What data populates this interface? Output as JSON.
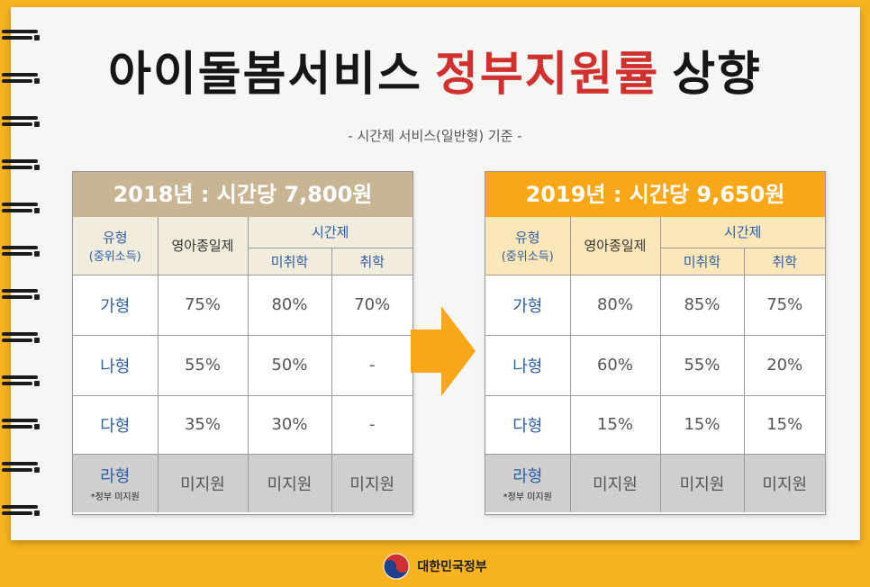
{
  "title": {
    "part1": "아이돌봄서비스",
    "highlight": "정부지원률",
    "part2": "상향"
  },
  "subtitle": "- 시간제 서비스(일반형) 기준 -",
  "colors": {
    "accent_red": "#d0302e",
    "brand_orange": "#f9a617",
    "tan": "#c8b593"
  },
  "headers": {
    "type": "유형",
    "type_sub": "(중위소득)",
    "comprehensive": "영아종일제",
    "hourly": "시간제",
    "preschool": "미취학",
    "school": "취학"
  },
  "tables": [
    {
      "heading": "2018년 : 시간당 7,800원",
      "rows": [
        {
          "label": "가형",
          "comprehensive": "75%",
          "preschool": "80%",
          "school": "70%"
        },
        {
          "label": "나형",
          "comprehensive": "55%",
          "preschool": "50%",
          "school": "-"
        },
        {
          "label": "다형",
          "comprehensive": "35%",
          "preschool": "30%",
          "school": "-"
        }
      ],
      "last_row": {
        "label": "라형",
        "note": "*정부 미지원",
        "comprehensive": "미지원",
        "preschool": "미지원",
        "school": "미지원"
      }
    },
    {
      "heading": "2019년 : 시간당 9,650원",
      "rows": [
        {
          "label": "가형",
          "comprehensive": "80%",
          "preschool": "85%",
          "school": "75%"
        },
        {
          "label": "나형",
          "comprehensive": "60%",
          "preschool": "55%",
          "school": "20%"
        },
        {
          "label": "다형",
          "comprehensive": "15%",
          "preschool": "15%",
          "school": "15%"
        }
      ],
      "last_row": {
        "label": "라형",
        "note": "*정부 미지원",
        "comprehensive": "미지원",
        "preschool": "미지원",
        "school": "미지원"
      }
    }
  ],
  "footer": {
    "logo_icon": "taegeuk-icon",
    "text": "대한민국정부"
  }
}
